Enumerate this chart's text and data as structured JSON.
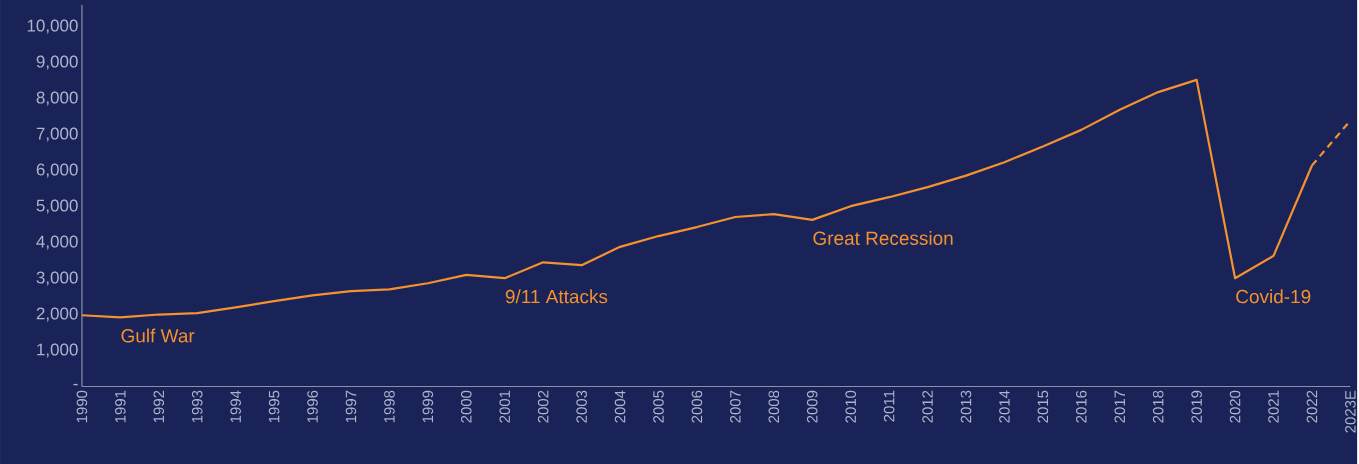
{
  "chart_data": {
    "type": "line",
    "categories": [
      "1990",
      "1991",
      "1992",
      "1993",
      "1994",
      "1995",
      "1996",
      "1997",
      "1998",
      "1999",
      "2000",
      "2001",
      "2002",
      "2003",
      "2004",
      "2005",
      "2006",
      "2007",
      "2008",
      "2009",
      "2010",
      "2011",
      "2012",
      "2013",
      "2014",
      "2015",
      "2016",
      "2017",
      "2018",
      "2019",
      "2020",
      "2021",
      "2022",
      "2023E"
    ],
    "series": [
      {
        "color": "#f5922f",
        "line_style": "solid",
        "values": [
          1980,
          1920,
          2000,
          2040,
          2200,
          2370,
          2530,
          2650,
          2700,
          2870,
          3100,
          3010,
          3450,
          3370,
          3880,
          4180,
          4430,
          4710,
          4790,
          4630,
          5010,
          5260,
          5540,
          5860,
          6230,
          6670,
          7130,
          7690,
          8180,
          8520,
          3010,
          3630,
          6140,
          null
        ]
      },
      {
        "color": "#f5922f",
        "line_style": "dashed",
        "values": [
          null,
          null,
          null,
          null,
          null,
          null,
          null,
          null,
          null,
          null,
          null,
          null,
          null,
          null,
          null,
          null,
          null,
          null,
          null,
          null,
          null,
          null,
          null,
          null,
          null,
          null,
          null,
          null,
          null,
          null,
          null,
          null,
          6140,
          7390
        ]
      }
    ],
    "ylim": [
      0,
      10600
    ],
    "yticks": [
      {
        "value": 0,
        "label": "-"
      },
      {
        "value": 1000,
        "label": "1,000"
      },
      {
        "value": 2000,
        "label": "2,000"
      },
      {
        "value": 3000,
        "label": "3,000"
      },
      {
        "value": 4000,
        "label": "4,000"
      },
      {
        "value": 5000,
        "label": "5,000"
      },
      {
        "value": 6000,
        "label": "6,000"
      },
      {
        "value": 7000,
        "label": "7,000"
      },
      {
        "value": 8000,
        "label": "8,000"
      },
      {
        "value": 9000,
        "label": "9,000"
      },
      {
        "value": 10000,
        "label": "10,000"
      }
    ],
    "annotations": [
      {
        "text": "Gulf War",
        "x": "1991",
        "y": 1920
      },
      {
        "text": "9/11 Attacks",
        "x": "2001",
        "y": 3010
      },
      {
        "text": "Great Recession",
        "x": "2009",
        "y": 4630
      },
      {
        "text": "Covid-19",
        "x": "2020",
        "y": 3010
      }
    ],
    "marker": "none"
  }
}
